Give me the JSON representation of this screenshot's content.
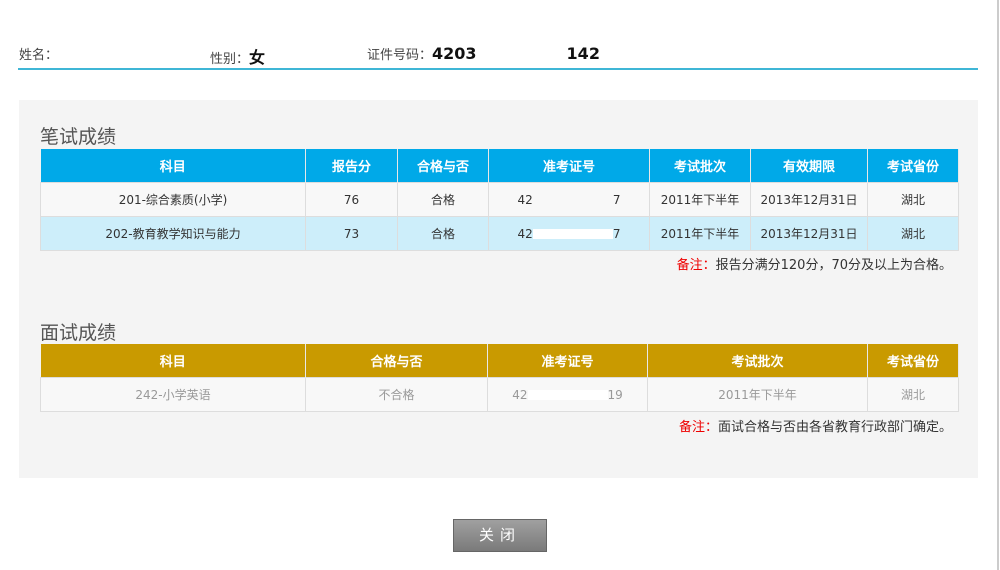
{
  "header": {
    "name_label": "姓名：",
    "name_value": "",
    "gender_label": "性别：",
    "gender_value": "女",
    "id_label": "证件号码：",
    "id_prefix": "4203",
    "id_suffix": "142"
  },
  "written": {
    "title": "笔试成绩",
    "columns": [
      "科目",
      "报告分",
      "合格与否",
      "准考证号",
      "考试批次",
      "有效期限",
      "考试省份"
    ],
    "rows": [
      {
        "subject": "201-综合素质(小学)",
        "score": "76",
        "pass": "合格",
        "ticket_prefix": "42",
        "ticket_suffix": "7",
        "batch": "2011年下半年",
        "valid": "2013年12月31日",
        "province": "湖北"
      },
      {
        "subject": "202-教育教学知识与能力",
        "score": "73",
        "pass": "合格",
        "ticket_prefix": "42",
        "ticket_suffix": "7",
        "batch": "2011年下半年",
        "valid": "2013年12月31日",
        "province": "湖北"
      }
    ],
    "note_label": "备注：",
    "note_text": "报告分满分120分，70分及以上为合格。"
  },
  "interview": {
    "title": "面试成绩",
    "columns": [
      "科目",
      "合格与否",
      "准考证号",
      "考试批次",
      "考试省份"
    ],
    "rows": [
      {
        "subject": "242-小学英语",
        "pass": "不合格",
        "ticket_prefix": "42",
        "ticket_suffix": "19",
        "batch": "2011年下半年",
        "province": "湖北"
      }
    ],
    "note_label": "备注：",
    "note_text": "面试合格与否由各省教育行政部门确定。"
  },
  "close_label": "关闭",
  "colors": {
    "written_header": "#00a9e8",
    "interview_header": "#c99a00",
    "note_label": "#e00000"
  }
}
